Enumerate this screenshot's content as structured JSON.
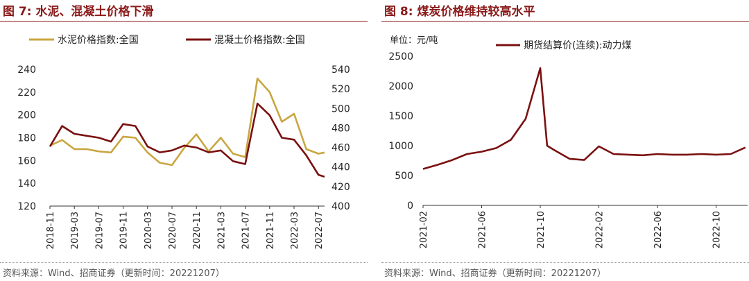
{
  "chart_data": [
    {
      "figure_label": "图 7:",
      "title": "水泥、混凝土价格下滑",
      "type": "line",
      "source": "资料来源：Wind、招商证券（更新时间：20221207）",
      "x_dates": [
        "2018-11",
        "2019-01",
        "2019-03",
        "2019-05",
        "2019-07",
        "2019-09",
        "2019-11",
        "2020-01",
        "2020-03",
        "2020-05",
        "2020-07",
        "2020-09",
        "2020-11",
        "2021-01",
        "2021-03",
        "2021-05",
        "2021-07",
        "2021-09",
        "2021-11",
        "2022-01",
        "2022-03",
        "2022-05",
        "2022-07",
        "2022-08"
      ],
      "x_tick_labels": [
        "2018-11",
        "2019-03",
        "2019-07",
        "2019-11",
        "2020-03",
        "2020-07",
        "2020-11",
        "2021-03",
        "2021-07",
        "2021-11",
        "2022-03",
        "2022-07"
      ],
      "y_left_ticks": [
        "120",
        "140",
        "160",
        "180",
        "200",
        "220",
        "240"
      ],
      "y_left_lim": [
        120,
        240
      ],
      "y_right_ticks": [
        "400",
        "420",
        "440",
        "460",
        "480",
        "500",
        "520",
        "540"
      ],
      "y_right_lim": [
        400,
        540
      ],
      "legend_position": "top",
      "series": [
        {
          "name": "水泥价格指数:全国",
          "axis": "left",
          "color": "#c9a640",
          "values": [
            173,
            178,
            170,
            170,
            168,
            167,
            181,
            180,
            167,
            158,
            156,
            171,
            183,
            168,
            180,
            166,
            163,
            232,
            220,
            194,
            201,
            170,
            166,
            167
          ]
        },
        {
          "name": "混凝土价格指数:全国",
          "axis": "right",
          "color": "#7a1010",
          "values": [
            461,
            482,
            474,
            472,
            470,
            466,
            484,
            482,
            461,
            455,
            457,
            462,
            460,
            455,
            457,
            446,
            443,
            505,
            493,
            470,
            468,
            452,
            432,
            430
          ]
        }
      ]
    },
    {
      "figure_label": "图 8:",
      "title": "煤炭价格维持较高水平",
      "type": "line",
      "unit": "单位：元/吨",
      "source": "资料来源：Wind、招商证券（更新时间：20221207）",
      "x_dates": [
        "2021-02",
        "2021-03",
        "2021-04",
        "2021-05",
        "2021-06",
        "2021-07",
        "2021-08",
        "2021-09",
        "2021-10",
        "2021-10-15",
        "2021-11",
        "2021-12",
        "2022-01",
        "2022-02",
        "2022-03",
        "2022-04",
        "2022-05",
        "2022-06",
        "2022-07",
        "2022-08",
        "2022-09",
        "2022-10",
        "2022-11",
        "2022-12"
      ],
      "x_tick_labels": [
        "2021-02",
        "2021-06",
        "2021-10",
        "2022-02",
        "2022-06",
        "2022-10"
      ],
      "y_ticks": [
        "0",
        "500",
        "1000",
        "1500",
        "2000",
        "2500"
      ],
      "ylim": [
        0,
        2500
      ],
      "legend_position": "top",
      "series": [
        {
          "name": "期货结算价(连续):动力煤",
          "color": "#7a1010",
          "values": [
            610,
            680,
            760,
            860,
            900,
            960,
            1100,
            1450,
            2300,
            1000,
            920,
            780,
            760,
            990,
            860,
            850,
            840,
            860,
            850,
            850,
            860,
            850,
            860,
            970
          ]
        }
      ]
    }
  ]
}
